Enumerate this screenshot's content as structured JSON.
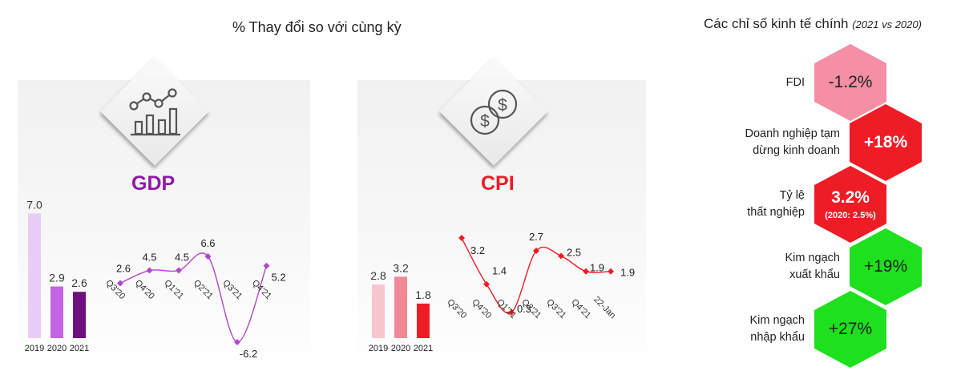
{
  "header": {
    "left_title": "% Thay đổi so với cùng kỳ",
    "right_title": "Các chỉ số kinh tế chính",
    "right_title_note": "(2021 vs 2020)"
  },
  "gdp": {
    "label": "GDP",
    "label_color": "#8e19a8"
  },
  "cpi": {
    "label": "CPI",
    "label_color": "#ee1c25"
  },
  "chart_data": [
    {
      "type": "bar",
      "title": "",
      "categories": [
        "2019",
        "2020",
        "2021"
      ],
      "values": [
        7.0,
        2.9,
        2.6
      ],
      "value_labels": [
        "7.0",
        "2.9",
        "2.6"
      ],
      "colors": [
        "#e8cdf6",
        "#c463e3",
        "#6e0f7f"
      ],
      "ylim": [
        0,
        7.2
      ]
    },
    {
      "type": "line",
      "title": "",
      "x": [
        "Q3'20",
        "Q4'20",
        "Q1'21",
        "Q2'21",
        "Q3'21",
        "Q4'21"
      ],
      "values": [
        2.6,
        4.5,
        4.5,
        6.6,
        -6.2,
        5.2
      ],
      "value_labels": [
        "2.6",
        "4.5",
        "4.5",
        "6.6",
        "-6.2",
        "5.2"
      ],
      "color": "#b246c9",
      "ylim": [
        -6.2,
        6.6
      ]
    },
    {
      "type": "bar",
      "title": "",
      "categories": [
        "2019",
        "2020",
        "2021"
      ],
      "values": [
        2.8,
        3.2,
        1.8
      ],
      "value_labels": [
        "2.8",
        "3.2",
        "1.8"
      ],
      "colors": [
        "#f8c6cf",
        "#f08896",
        "#ee1c25"
      ],
      "ylim": [
        0,
        3.3
      ]
    },
    {
      "type": "line",
      "title": "",
      "x": [
        "Q3'20",
        "Q4'20",
        "Q1'21",
        "Q2'21",
        "Q3'21",
        "Q4'21",
        "22-Jan"
      ],
      "values": [
        3.2,
        1.4,
        0.3,
        2.7,
        2.5,
        1.9,
        1.9
      ],
      "value_labels": [
        "3.2",
        "1.4",
        "0.3",
        "2.7",
        "2.5",
        "1.9",
        "1.9"
      ],
      "color": "#ee1c25",
      "ylim": [
        0.3,
        3.2
      ]
    }
  ],
  "indicators": [
    {
      "label_lines": [
        "FDI"
      ],
      "value": "-1.2%",
      "sub": "",
      "color": "#f48fa5",
      "text_color": "#222222"
    },
    {
      "label_lines": [
        "Doanh nghiệp tạm",
        "dừng kinh doanh"
      ],
      "value": "+18%",
      "sub": "",
      "color": "#ee1c25",
      "text_color": "#ffffff"
    },
    {
      "label_lines": [
        "Tỷ lệ",
        "thất nghiệp"
      ],
      "value": "3.2%",
      "sub": "(2020: 2.5%)",
      "color": "#ee1c25",
      "text_color": "#ffffff"
    },
    {
      "label_lines": [
        "Kim ngạch",
        "xuất khẩu"
      ],
      "value": "+19%",
      "sub": "",
      "color": "#1ee01e",
      "text_color": "#222222"
    },
    {
      "label_lines": [
        "Kim ngạch",
        "nhập khẩu"
      ],
      "value": "+27%",
      "sub": "",
      "color": "#1ee01e",
      "text_color": "#222222"
    }
  ]
}
